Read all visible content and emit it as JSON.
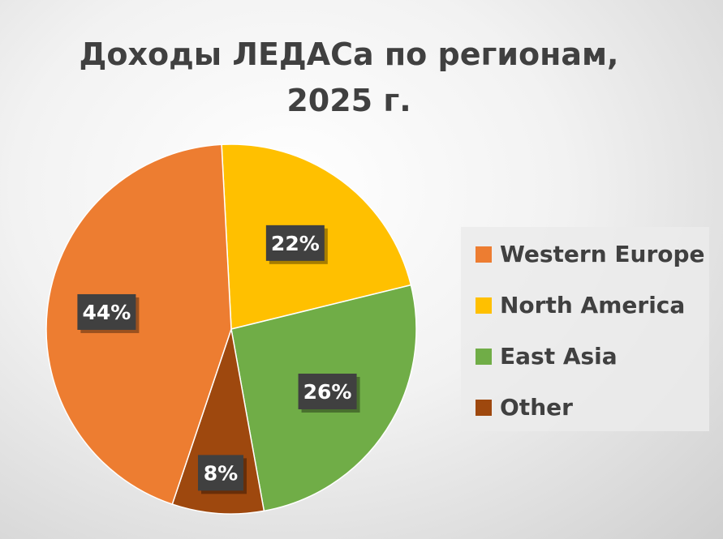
{
  "chart_data": {
    "type": "pie",
    "title_line1": "Доходы ЛЕДАСа по регионам,",
    "title_line2": "2025 г.",
    "categories": [
      "Western Europe",
      "North America",
      "East Asia",
      "Other"
    ],
    "values": [
      44,
      22,
      26,
      8
    ],
    "labels": [
      "44%",
      "22%",
      "26%",
      "8%"
    ],
    "colors": [
      "#ED7D31",
      "#FFC000",
      "#70AD47",
      "#9E480E"
    ],
    "legend_position": "right",
    "start_angle_deg": -3
  }
}
